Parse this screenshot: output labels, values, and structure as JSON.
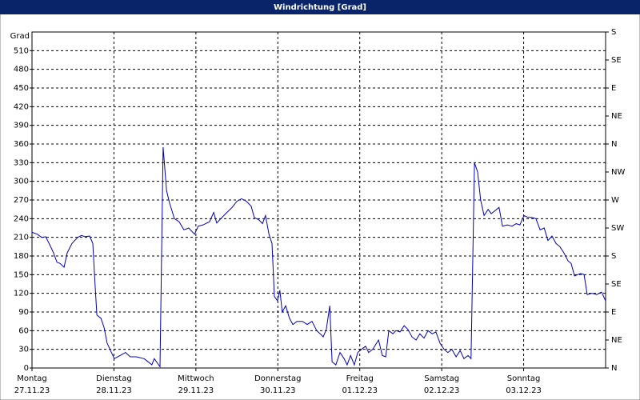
{
  "chart_data": {
    "type": "line",
    "title": "Windrichtung [Grad]",
    "ylabel": "Grad",
    "xlim": [
      0,
      168
    ],
    "xticks": [
      {
        "value": 0,
        "label": "Montag"
      },
      {
        "value": 24,
        "label": "Dienstag"
      },
      {
        "value": 48,
        "label": "Mittwoch"
      },
      {
        "value": 72,
        "label": "Donnerstag"
      },
      {
        "value": 96,
        "label": "Freitag"
      },
      {
        "value": 120,
        "label": "Samstag"
      },
      {
        "value": 144,
        "label": "Sonntag"
      }
    ],
    "xtick_dates": [
      "27.11.23",
      "28.11.23",
      "29.11.23",
      "30.11.23",
      "01.12.23",
      "02.12.23",
      "03.12.23"
    ],
    "ylim": [
      0,
      540
    ],
    "yticks": [
      0,
      30,
      60,
      90,
      120,
      150,
      180,
      210,
      240,
      270,
      300,
      330,
      360,
      390,
      420,
      450,
      480,
      510
    ],
    "y2lim": [
      0,
      540
    ],
    "y2ticks": [
      {
        "value": 0,
        "label": "N"
      },
      {
        "value": 45,
        "label": "NE"
      },
      {
        "value": 90,
        "label": "E"
      },
      {
        "value": 135,
        "label": "SE"
      },
      {
        "value": 180,
        "label": "S"
      },
      {
        "value": 225,
        "label": "SW"
      },
      {
        "value": 270,
        "label": "W"
      },
      {
        "value": 315,
        "label": "NW"
      },
      {
        "value": 360,
        "label": "N"
      },
      {
        "value": 405,
        "label": "NE"
      },
      {
        "value": 450,
        "label": "E"
      },
      {
        "value": 495,
        "label": "SE"
      },
      {
        "value": 540,
        "label": "S"
      }
    ],
    "grid": true,
    "color": "#0000c0",
    "x": [
      0,
      1.6,
      2.8,
      4.0,
      5.2,
      6.3,
      7.3,
      8.2,
      9.4,
      10.3,
      11.7,
      13.4,
      14.5,
      15.5,
      16.9,
      17.8,
      18.5,
      19.0,
      20.2,
      21.1,
      22.0,
      23.0,
      24.1,
      25.8,
      27.4,
      28.8,
      30.5,
      32.8,
      34.0,
      35.1,
      35.8,
      37.5,
      38.4,
      39.4,
      40.3,
      41.7,
      43.1,
      44.5,
      45.9,
      47.6,
      48.7,
      50.1,
      52.0,
      53.2,
      54.1,
      55.3,
      56.7,
      58.6,
      60.0,
      61.4,
      62.8,
      64.2,
      65.1,
      66.5,
      67.5,
      68.4,
      69.4,
      70.3,
      71.0,
      71.9,
      72.6,
      73.3,
      74.3,
      75.4,
      76.4,
      77.6,
      79.2,
      80.6,
      82.0,
      83.4,
      84.4,
      85.3,
      86.2,
      87.2,
      87.9,
      89.0,
      90.2,
      91.4,
      92.3,
      93.3,
      94.4,
      95.4,
      96.5,
      97.7,
      98.6,
      99.8,
      101.5,
      102.6,
      103.6,
      104.5,
      105.7,
      106.6,
      107.8,
      109.0,
      110.1,
      111.3,
      112.5,
      113.6,
      114.8,
      116.0,
      117.2,
      118.3,
      119.5,
      120.7,
      121.8,
      123.0,
      124.2,
      125.4,
      126.5,
      127.7,
      128.6,
      129.6,
      130.5,
      131.4,
      132.4,
      133.6,
      134.5,
      135.4,
      136.8,
      137.8,
      139.2,
      140.6,
      141.8,
      142.9,
      144.1,
      145.3,
      146.4,
      147.6,
      148.8,
      150.0,
      151.1,
      152.3,
      153.5,
      154.6,
      155.8,
      157.0,
      157.9,
      158.9,
      159.8,
      160.7,
      161.7,
      162.6,
      164.0,
      165.4,
      166.8,
      168.0
    ],
    "values": [
      218,
      215,
      210,
      211,
      198,
      185,
      170,
      168,
      162,
      185,
      200,
      210,
      213,
      211,
      212,
      200,
      130,
      85,
      80,
      65,
      40,
      28,
      15,
      20,
      25,
      18,
      18,
      15,
      10,
      5,
      15,
      2,
      355,
      285,
      265,
      240,
      235,
      222,
      225,
      215,
      228,
      230,
      235,
      250,
      233,
      240,
      248,
      258,
      268,
      272,
      268,
      260,
      242,
      238,
      232,
      245,
      215,
      200,
      115,
      108,
      125,
      90,
      100,
      80,
      70,
      75,
      75,
      70,
      75,
      60,
      55,
      50,
      62,
      100,
      10,
      5,
      25,
      15,
      5,
      20,
      5,
      25,
      30,
      35,
      25,
      30,
      45,
      20,
      18,
      60,
      55,
      60,
      58,
      68,
      62,
      50,
      45,
      55,
      48,
      60,
      55,
      58,
      40,
      30,
      25,
      30,
      18,
      28,
      15,
      20,
      15,
      330,
      315,
      270,
      245,
      255,
      248,
      252,
      258,
      228,
      230,
      228,
      232,
      230,
      245,
      242,
      242,
      240,
      222,
      225,
      205,
      212,
      200,
      195,
      185,
      172,
      168,
      148,
      150,
      152,
      150,
      118,
      120,
      118,
      122,
      108
    ]
  }
}
